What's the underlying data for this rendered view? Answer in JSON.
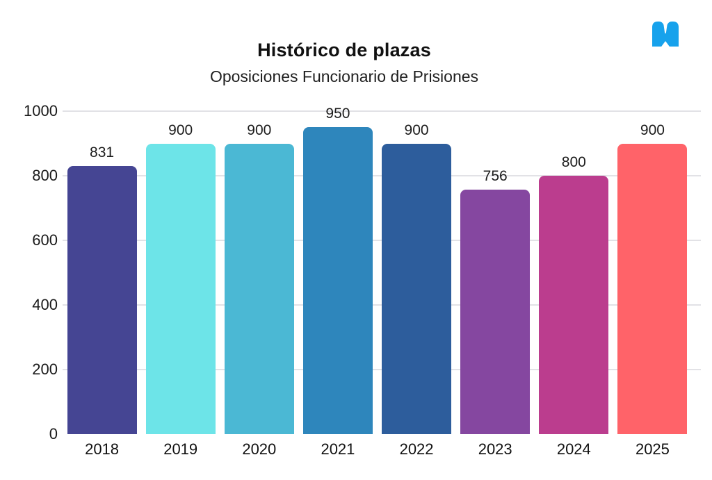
{
  "header": {
    "title": "Histórico de plazas",
    "subtitle": "Oposiciones Funcionario de Prisiones",
    "logo_icon": "m-logo",
    "logo_color": "#17A2EC"
  },
  "chart_data": {
    "type": "bar",
    "title": "Histórico de plazas",
    "subtitle": "Oposiciones Funcionario de Prisiones",
    "categories": [
      "2018",
      "2019",
      "2020",
      "2021",
      "2022",
      "2023",
      "2024",
      "2025"
    ],
    "values": [
      831,
      900,
      900,
      950,
      900,
      756,
      800,
      900
    ],
    "value_labels": [
      "831",
      "900",
      "900",
      "950",
      "900",
      "756",
      "800",
      "900"
    ],
    "bar_colors": [
      "#454593",
      "#6DE4E8",
      "#4BB8D4",
      "#2E86BC",
      "#2D5D9C",
      "#8547A0",
      "#BB3D8E",
      "#FF6369"
    ],
    "xlabel": "",
    "ylabel": "",
    "ylim": [
      0,
      1000
    ],
    "yticks": [
      0,
      200,
      400,
      600,
      800,
      1000
    ],
    "grid": "horizontal",
    "gridline_color": "#e2e2e6",
    "tick_label_color": "#1a1a1a",
    "legend": "none",
    "background": "#ffffff"
  }
}
